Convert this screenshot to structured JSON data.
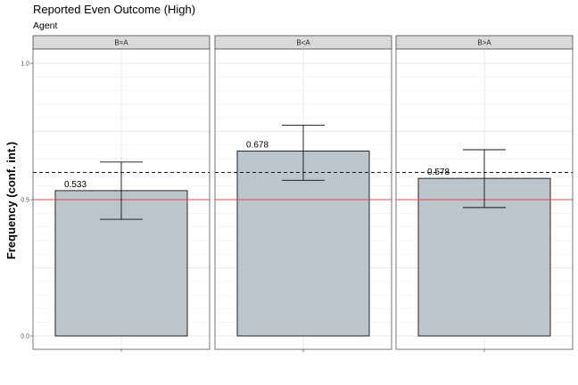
{
  "title": "Reported Even Outcome (High)",
  "subtitle": "Agent",
  "chart_data": {
    "type": "bar",
    "title": "Reported Even Outcome (High)",
    "subtitle": "Agent",
    "ylabel": "Frequency (conf. int.)",
    "xlabel": "",
    "ylim": [
      0,
      1.0
    ],
    "y_ticks": [
      "0.0",
      "0.5",
      "1.0"
    ],
    "facets": [
      "B=A",
      "B<A",
      "B>A"
    ],
    "values": [
      0.533,
      0.678,
      0.578
    ],
    "value_labels": [
      "0.533",
      "0.678",
      "0.578"
    ],
    "ci_lower": [
      0.428,
      0.571,
      0.471
    ],
    "ci_upper": [
      0.638,
      0.773,
      0.683
    ],
    "reference_lines": [
      {
        "style": "solid",
        "color": "#e8474d",
        "value": 0.5
      },
      {
        "style": "dashed",
        "color": "#000000",
        "value": 0.6
      }
    ],
    "bar_color": "#bcc5cb",
    "grid": true
  }
}
